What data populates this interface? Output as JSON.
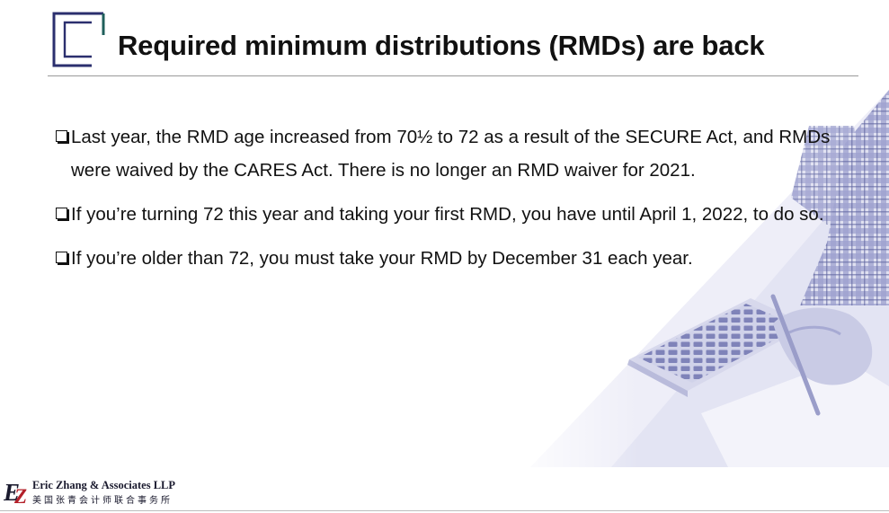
{
  "slide": {
    "title": "Required minimum distributions (RMDs) are back",
    "bullets": [
      {
        "text": "Last year, the RMD age increased from 70½ to 72 as a result of the SECURE Act, and RMDs were waived by the CARES Act. There is no longer an RMD waiver for 2021."
      },
      {
        "text": "If you’re turning 72 this year and taking your first RMD, you have until April 1, 2022, to do so."
      },
      {
        "text": "If you’re older than 72, you must take your RMD by December 31 each year."
      }
    ]
  },
  "footer": {
    "logo_initials": "EZ",
    "logo_name": "Eric Zhang & Associates LLP",
    "logo_chinese": "美国张青会计师联合事务所"
  },
  "colors": {
    "accent_navy": "#2b2f6e",
    "accent_teal": "#1f5f5b",
    "logo_red": "#b3202a",
    "photo_tint": "#8f93c7"
  },
  "icons": {
    "bullet": "checkbox-square-icon",
    "header": "bracket-logo-icon"
  }
}
